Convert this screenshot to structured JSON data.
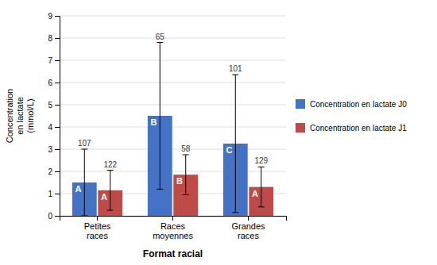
{
  "chart_data": {
    "type": "bar",
    "categories": [
      "Petites\nraces",
      "Races\nmoyennes",
      "Grandes\nraces"
    ],
    "series": [
      {
        "name": "Concentration en lactate J0",
        "color": "#4472C4",
        "values": [
          1.5,
          4.5,
          3.25
        ],
        "errors": [
          1.5,
          3.3,
          3.1
        ],
        "n_labels": [
          "107",
          "65",
          "101"
        ],
        "letters": [
          "A",
          "B",
          "C"
        ]
      },
      {
        "name": "Concentration en lactate J1",
        "color": "#BE4B48",
        "values": [
          1.15,
          1.85,
          1.3
        ],
        "errors": [
          0.9,
          0.9,
          0.9
        ],
        "n_labels": [
          "122",
          "58",
          "129"
        ],
        "letters": [
          "A",
          "B",
          "A"
        ]
      }
    ],
    "xlabel": "Format racial",
    "ylabel": "Concentration\nen lactate\n(mmol/L)",
    "ylim": [
      0,
      9
    ],
    "yticks": [
      0,
      1,
      2,
      3,
      4,
      5,
      6,
      7,
      8,
      9
    ],
    "grid": true,
    "legend": "right"
  }
}
